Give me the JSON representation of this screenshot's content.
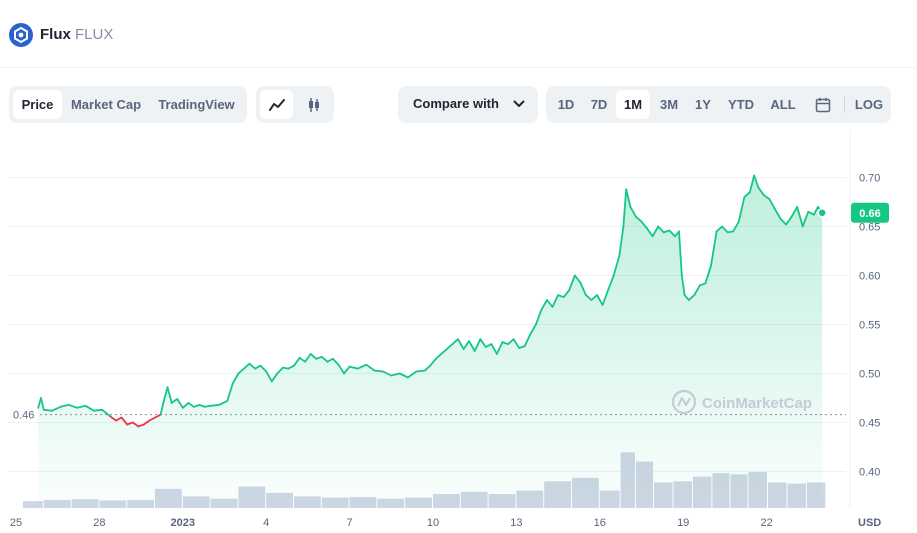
{
  "coin": {
    "name": "Flux",
    "symbol": "FLUX"
  },
  "tabs": [
    {
      "label": "Price",
      "active": true
    },
    {
      "label": "Market Cap",
      "active": false
    },
    {
      "label": "TradingView",
      "active": false
    }
  ],
  "chart_types": [
    {
      "icon": "line-chart-icon",
      "active": true
    },
    {
      "icon": "candlestick-icon",
      "active": false
    }
  ],
  "compare": {
    "label": "Compare with"
  },
  "ranges": [
    {
      "label": "1D",
      "active": false
    },
    {
      "label": "7D",
      "active": false
    },
    {
      "label": "1M",
      "active": true
    },
    {
      "label": "3M",
      "active": false
    },
    {
      "label": "1Y",
      "active": false
    },
    {
      "label": "YTD",
      "active": false
    },
    {
      "label": "ALL",
      "active": false
    }
  ],
  "calendar_icon": "calendar-icon",
  "log_label": "LOG",
  "watermark": "CoinMarketCap",
  "colors": {
    "up": "#16c784",
    "down": "#ea3943",
    "baseline": "#858ca2",
    "volume": "#cfd6e4"
  },
  "chart_data": {
    "type": "area",
    "currency_label": "USD",
    "current_price_label": "0.66",
    "current_price": 0.664,
    "baseline_label": "0.46",
    "baseline": 0.458,
    "ylim": [
      0.38,
      0.74
    ],
    "y_ticks": [
      0.4,
      0.45,
      0.5,
      0.55,
      0.6,
      0.65,
      0.7
    ],
    "y_tick_labels": [
      "0.40",
      "0.45",
      "0.50",
      "0.55",
      "0.60",
      "0.65",
      "0.70"
    ],
    "x_ticks": [
      {
        "label": "25",
        "day": 0,
        "bold": false
      },
      {
        "label": "28",
        "day": 3,
        "bold": false
      },
      {
        "label": "2023",
        "day": 6,
        "bold": true
      },
      {
        "label": "4",
        "day": 9,
        "bold": false
      },
      {
        "label": "7",
        "day": 12,
        "bold": false
      },
      {
        "label": "10",
        "day": 15,
        "bold": false
      },
      {
        "label": "13",
        "day": 18,
        "bold": false
      },
      {
        "label": "16",
        "day": 21,
        "bold": false
      },
      {
        "label": "19",
        "day": 24,
        "bold": false
      },
      {
        "label": "22",
        "day": 27,
        "bold": false
      }
    ],
    "xlim_days": [
      0,
      29.5
    ],
    "price_series": [
      [
        0.8,
        0.465
      ],
      [
        0.9,
        0.475
      ],
      [
        1.0,
        0.463
      ],
      [
        1.3,
        0.462
      ],
      [
        1.6,
        0.466
      ],
      [
        1.9,
        0.468
      ],
      [
        2.2,
        0.465
      ],
      [
        2.5,
        0.467
      ],
      [
        2.8,
        0.462
      ],
      [
        3.1,
        0.463
      ],
      [
        3.4,
        0.456
      ],
      [
        3.6,
        0.452
      ],
      [
        3.8,
        0.455
      ],
      [
        4.0,
        0.448
      ],
      [
        4.2,
        0.45
      ],
      [
        4.4,
        0.446
      ],
      [
        4.6,
        0.448
      ],
      [
        4.8,
        0.452
      ],
      [
        5.0,
        0.455
      ],
      [
        5.2,
        0.458
      ],
      [
        5.3,
        0.47
      ],
      [
        5.45,
        0.486
      ],
      [
        5.6,
        0.47
      ],
      [
        5.8,
        0.474
      ],
      [
        6.0,
        0.465
      ],
      [
        6.2,
        0.47
      ],
      [
        6.4,
        0.466
      ],
      [
        6.6,
        0.468
      ],
      [
        6.8,
        0.466
      ],
      [
        7.0,
        0.467
      ],
      [
        7.3,
        0.468
      ],
      [
        7.6,
        0.472
      ],
      [
        7.8,
        0.49
      ],
      [
        8.0,
        0.5
      ],
      [
        8.2,
        0.505
      ],
      [
        8.4,
        0.51
      ],
      [
        8.6,
        0.505
      ],
      [
        8.8,
        0.508
      ],
      [
        9.0,
        0.502
      ],
      [
        9.2,
        0.492
      ],
      [
        9.4,
        0.5
      ],
      [
        9.6,
        0.506
      ],
      [
        9.8,
        0.505
      ],
      [
        10.0,
        0.508
      ],
      [
        10.2,
        0.516
      ],
      [
        10.4,
        0.512
      ],
      [
        10.6,
        0.52
      ],
      [
        10.8,
        0.515
      ],
      [
        11.0,
        0.517
      ],
      [
        11.2,
        0.512
      ],
      [
        11.4,
        0.515
      ],
      [
        11.6,
        0.509
      ],
      [
        11.8,
        0.5
      ],
      [
        12.0,
        0.507
      ],
      [
        12.3,
        0.505
      ],
      [
        12.6,
        0.509
      ],
      [
        12.9,
        0.503
      ],
      [
        13.2,
        0.502
      ],
      [
        13.5,
        0.498
      ],
      [
        13.8,
        0.5
      ],
      [
        14.1,
        0.496
      ],
      [
        14.4,
        0.502
      ],
      [
        14.7,
        0.503
      ],
      [
        14.9,
        0.508
      ],
      [
        15.1,
        0.515
      ],
      [
        15.3,
        0.52
      ],
      [
        15.5,
        0.525
      ],
      [
        15.7,
        0.53
      ],
      [
        15.9,
        0.535
      ],
      [
        16.1,
        0.525
      ],
      [
        16.3,
        0.533
      ],
      [
        16.5,
        0.523
      ],
      [
        16.7,
        0.535
      ],
      [
        16.9,
        0.527
      ],
      [
        17.1,
        0.53
      ],
      [
        17.3,
        0.52
      ],
      [
        17.5,
        0.532
      ],
      [
        17.7,
        0.53
      ],
      [
        17.9,
        0.535
      ],
      [
        18.1,
        0.526
      ],
      [
        18.3,
        0.528
      ],
      [
        18.5,
        0.54
      ],
      [
        18.7,
        0.55
      ],
      [
        18.9,
        0.565
      ],
      [
        19.1,
        0.575
      ],
      [
        19.3,
        0.568
      ],
      [
        19.5,
        0.58
      ],
      [
        19.7,
        0.578
      ],
      [
        19.9,
        0.585
      ],
      [
        20.1,
        0.6
      ],
      [
        20.3,
        0.593
      ],
      [
        20.5,
        0.58
      ],
      [
        20.7,
        0.575
      ],
      [
        20.9,
        0.58
      ],
      [
        21.1,
        0.57
      ],
      [
        21.3,
        0.585
      ],
      [
        21.5,
        0.6
      ],
      [
        21.7,
        0.62
      ],
      [
        21.85,
        0.65
      ],
      [
        21.95,
        0.688
      ],
      [
        22.1,
        0.67
      ],
      [
        22.3,
        0.66
      ],
      [
        22.5,
        0.655
      ],
      [
        22.7,
        0.648
      ],
      [
        22.9,
        0.64
      ],
      [
        23.1,
        0.65
      ],
      [
        23.3,
        0.644
      ],
      [
        23.5,
        0.646
      ],
      [
        23.7,
        0.64
      ],
      [
        23.85,
        0.645
      ],
      [
        23.95,
        0.6
      ],
      [
        24.05,
        0.58
      ],
      [
        24.2,
        0.575
      ],
      [
        24.4,
        0.58
      ],
      [
        24.6,
        0.59
      ],
      [
        24.8,
        0.592
      ],
      [
        25.0,
        0.61
      ],
      [
        25.2,
        0.645
      ],
      [
        25.4,
        0.65
      ],
      [
        25.6,
        0.644
      ],
      [
        25.8,
        0.645
      ],
      [
        26.0,
        0.655
      ],
      [
        26.2,
        0.68
      ],
      [
        26.4,
        0.685
      ],
      [
        26.55,
        0.702
      ],
      [
        26.7,
        0.69
      ],
      [
        26.9,
        0.682
      ],
      [
        27.1,
        0.678
      ],
      [
        27.3,
        0.668
      ],
      [
        27.5,
        0.658
      ],
      [
        27.7,
        0.652
      ],
      [
        27.9,
        0.66
      ],
      [
        28.1,
        0.67
      ],
      [
        28.3,
        0.65
      ],
      [
        28.5,
        0.665
      ],
      [
        28.7,
        0.662
      ],
      [
        28.85,
        0.67
      ],
      [
        29.0,
        0.664
      ]
    ],
    "volume_series": [
      [
        0.5,
        0.12
      ],
      [
        1.5,
        0.14
      ],
      [
        2.5,
        0.15
      ],
      [
        3.5,
        0.13
      ],
      [
        4.5,
        0.14
      ],
      [
        5.5,
        0.33
      ],
      [
        6.5,
        0.2
      ],
      [
        7.5,
        0.16
      ],
      [
        8.5,
        0.37
      ],
      [
        9.5,
        0.26
      ],
      [
        10.5,
        0.2
      ],
      [
        11.5,
        0.18
      ],
      [
        12.5,
        0.19
      ],
      [
        13.5,
        0.16
      ],
      [
        14.5,
        0.18
      ],
      [
        15.5,
        0.24
      ],
      [
        16.5,
        0.28
      ],
      [
        17.5,
        0.24
      ],
      [
        18.5,
        0.3
      ],
      [
        19.5,
        0.46
      ],
      [
        20.5,
        0.52
      ],
      [
        21.5,
        0.3
      ],
      [
        22.0,
        0.96
      ],
      [
        22.6,
        0.8
      ],
      [
        23.3,
        0.44
      ],
      [
        24.0,
        0.46
      ],
      [
        24.7,
        0.54
      ],
      [
        25.4,
        0.6
      ],
      [
        26.0,
        0.58
      ],
      [
        26.7,
        0.62
      ],
      [
        27.4,
        0.44
      ],
      [
        28.1,
        0.42
      ],
      [
        28.8,
        0.44
      ]
    ],
    "volume_max": 1.0
  }
}
